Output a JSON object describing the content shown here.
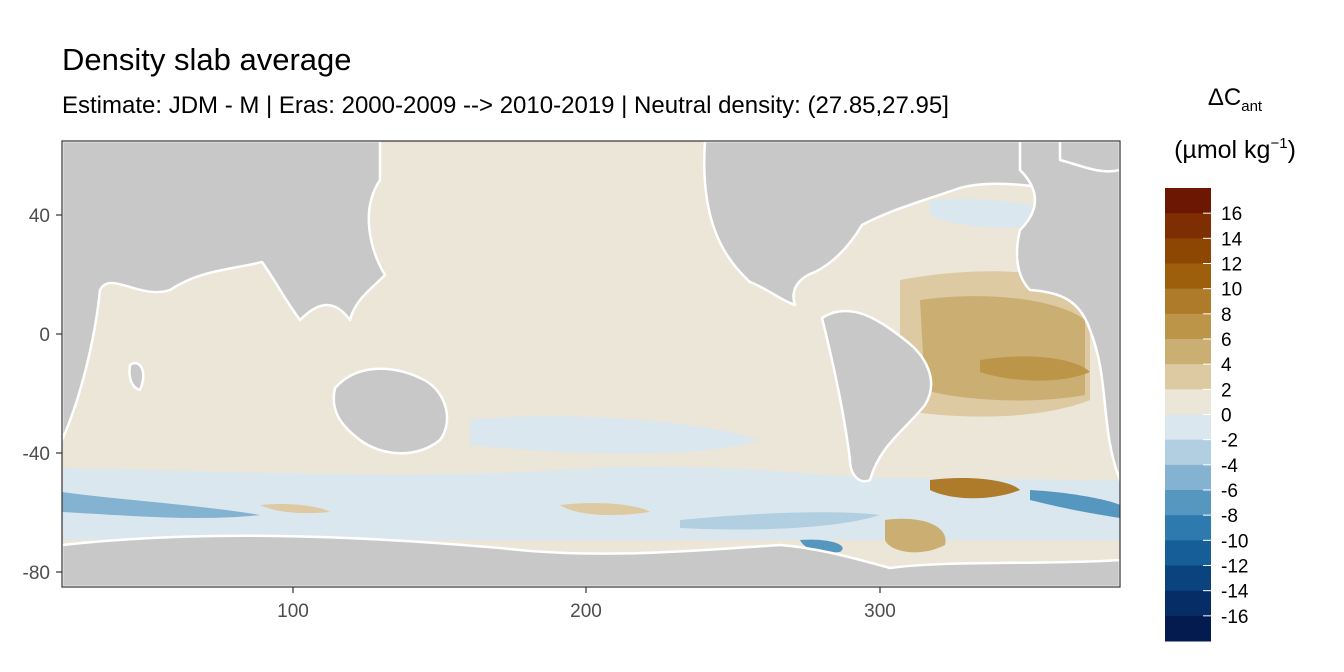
{
  "title": "Density slab average",
  "subtitle": "Estimate: JDM - M | Eras: 2000-2009 --> 2010-2019 | Neutral density: (27.85,27.95]",
  "legend": {
    "symbol": "ΔC",
    "subscript": "ant",
    "unit_prefix": "(µmol kg",
    "unit_exp": "−1",
    "unit_suffix": ")",
    "labels": [
      "16",
      "14",
      "12",
      "10",
      "8",
      "6",
      "4",
      "2",
      "0",
      "-2",
      "-4",
      "-6",
      "-8",
      "-10",
      "-12",
      "-14",
      "-16"
    ],
    "colors": [
      "#6b1702",
      "#7d2f03",
      "#8e4703",
      "#9d5f0c",
      "#ad7b29",
      "#bd9549",
      "#cbae72",
      "#ddcaa3",
      "#ece6d9",
      "#dbe7ee",
      "#b1cfe1",
      "#83b3d1",
      "#5697c0",
      "#2e7aaf",
      "#165e98",
      "#0b437f",
      "#072d67",
      "#041b4f"
    ]
  },
  "axes": {
    "x_ticks": [
      "100",
      "200",
      "300"
    ],
    "y_ticks": [
      "40",
      "0",
      "-40",
      "-80"
    ]
  },
  "colors": {
    "land": "#c8c8c8",
    "frame": "#333333"
  }
}
